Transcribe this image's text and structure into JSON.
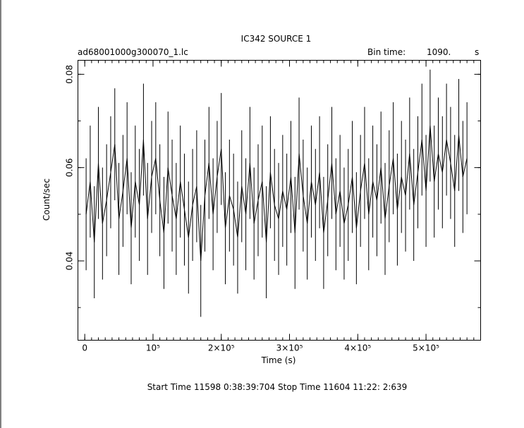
{
  "chart_data": {
    "type": "line",
    "style": "binned light curve with vertical error bars",
    "title": "IC342 SOURCE 1",
    "file_label": "ad68001000g300070_1.lc",
    "bin_time_label": "Bin time:",
    "bin_time_value": "1090.",
    "bin_time_unit": "s",
    "xlabel": "Time (s)",
    "ylabel": "Count/sec",
    "xlim": [
      -10000,
      580000
    ],
    "ylim": [
      0.023,
      0.083
    ],
    "x_ticks": [
      {
        "value": 0,
        "label": "0"
      },
      {
        "value": 100000,
        "label": "10⁵"
      },
      {
        "value": 200000,
        "label": "2×10⁵"
      },
      {
        "value": 300000,
        "label": "3×10⁵"
      },
      {
        "value": 400000,
        "label": "4×10⁵"
      },
      {
        "value": 500000,
        "label": "5×10⁵"
      }
    ],
    "y_ticks": [
      {
        "value": 0.04,
        "label": "0.04"
      },
      {
        "value": 0.06,
        "label": "0.06"
      },
      {
        "value": 0.08,
        "label": "0.08"
      }
    ],
    "x_minor_step": 10000,
    "y_minor_step": 0.01,
    "error_bar_halfwidth": 0.012,
    "series": [
      {
        "x": [
          2000,
          8000,
          14000,
          20000,
          26000,
          32000,
          38000,
          44000,
          50000,
          56000,
          62000,
          68000,
          74000,
          80000,
          86000,
          92000,
          98000,
          104000,
          110000,
          116000,
          122000,
          128000,
          134000,
          140000,
          146000,
          152000,
          158000,
          164000,
          170000,
          176000,
          182000,
          188000,
          194000,
          200000,
          206000,
          212000,
          218000,
          224000,
          230000,
          236000,
          242000,
          248000,
          254000,
          260000,
          266000,
          272000,
          278000,
          284000,
          290000,
          296000,
          302000,
          308000,
          314000,
          320000,
          326000,
          332000,
          338000,
          344000,
          350000,
          356000,
          362000,
          368000,
          374000,
          380000,
          386000,
          392000,
          398000,
          404000,
          410000,
          416000,
          422000,
          428000,
          434000,
          440000,
          446000,
          452000,
          458000,
          464000,
          470000,
          476000,
          482000,
          488000,
          494000,
          500000,
          506000,
          512000,
          518000,
          524000,
          530000,
          536000,
          542000,
          548000,
          554000,
          560000
        ],
        "y": [
          0.05,
          0.057,
          0.044,
          0.061,
          0.048,
          0.053,
          0.059,
          0.065,
          0.049,
          0.055,
          0.062,
          0.047,
          0.057,
          0.052,
          0.066,
          0.049,
          0.058,
          0.062,
          0.053,
          0.046,
          0.06,
          0.054,
          0.049,
          0.057,
          0.051,
          0.045,
          0.052,
          0.056,
          0.04,
          0.054,
          0.061,
          0.05,
          0.058,
          0.064,
          0.047,
          0.054,
          0.051,
          0.045,
          0.056,
          0.05,
          0.061,
          0.048,
          0.053,
          0.057,
          0.044,
          0.059,
          0.052,
          0.049,
          0.055,
          0.051,
          0.058,
          0.046,
          0.063,
          0.054,
          0.048,
          0.057,
          0.052,
          0.059,
          0.046,
          0.053,
          0.061,
          0.05,
          0.055,
          0.048,
          0.052,
          0.058,
          0.047,
          0.055,
          0.061,
          0.05,
          0.057,
          0.053,
          0.06,
          0.049,
          0.056,
          0.062,
          0.051,
          0.058,
          0.054,
          0.063,
          0.052,
          0.059,
          0.066,
          0.055,
          0.069,
          0.057,
          0.063,
          0.059,
          0.066,
          0.061,
          0.055,
          0.067,
          0.058,
          0.062
        ]
      }
    ]
  },
  "footer": {
    "text": "Start Time 11598  0:38:39:704    Stop Time 11604 11:22: 2:639"
  }
}
